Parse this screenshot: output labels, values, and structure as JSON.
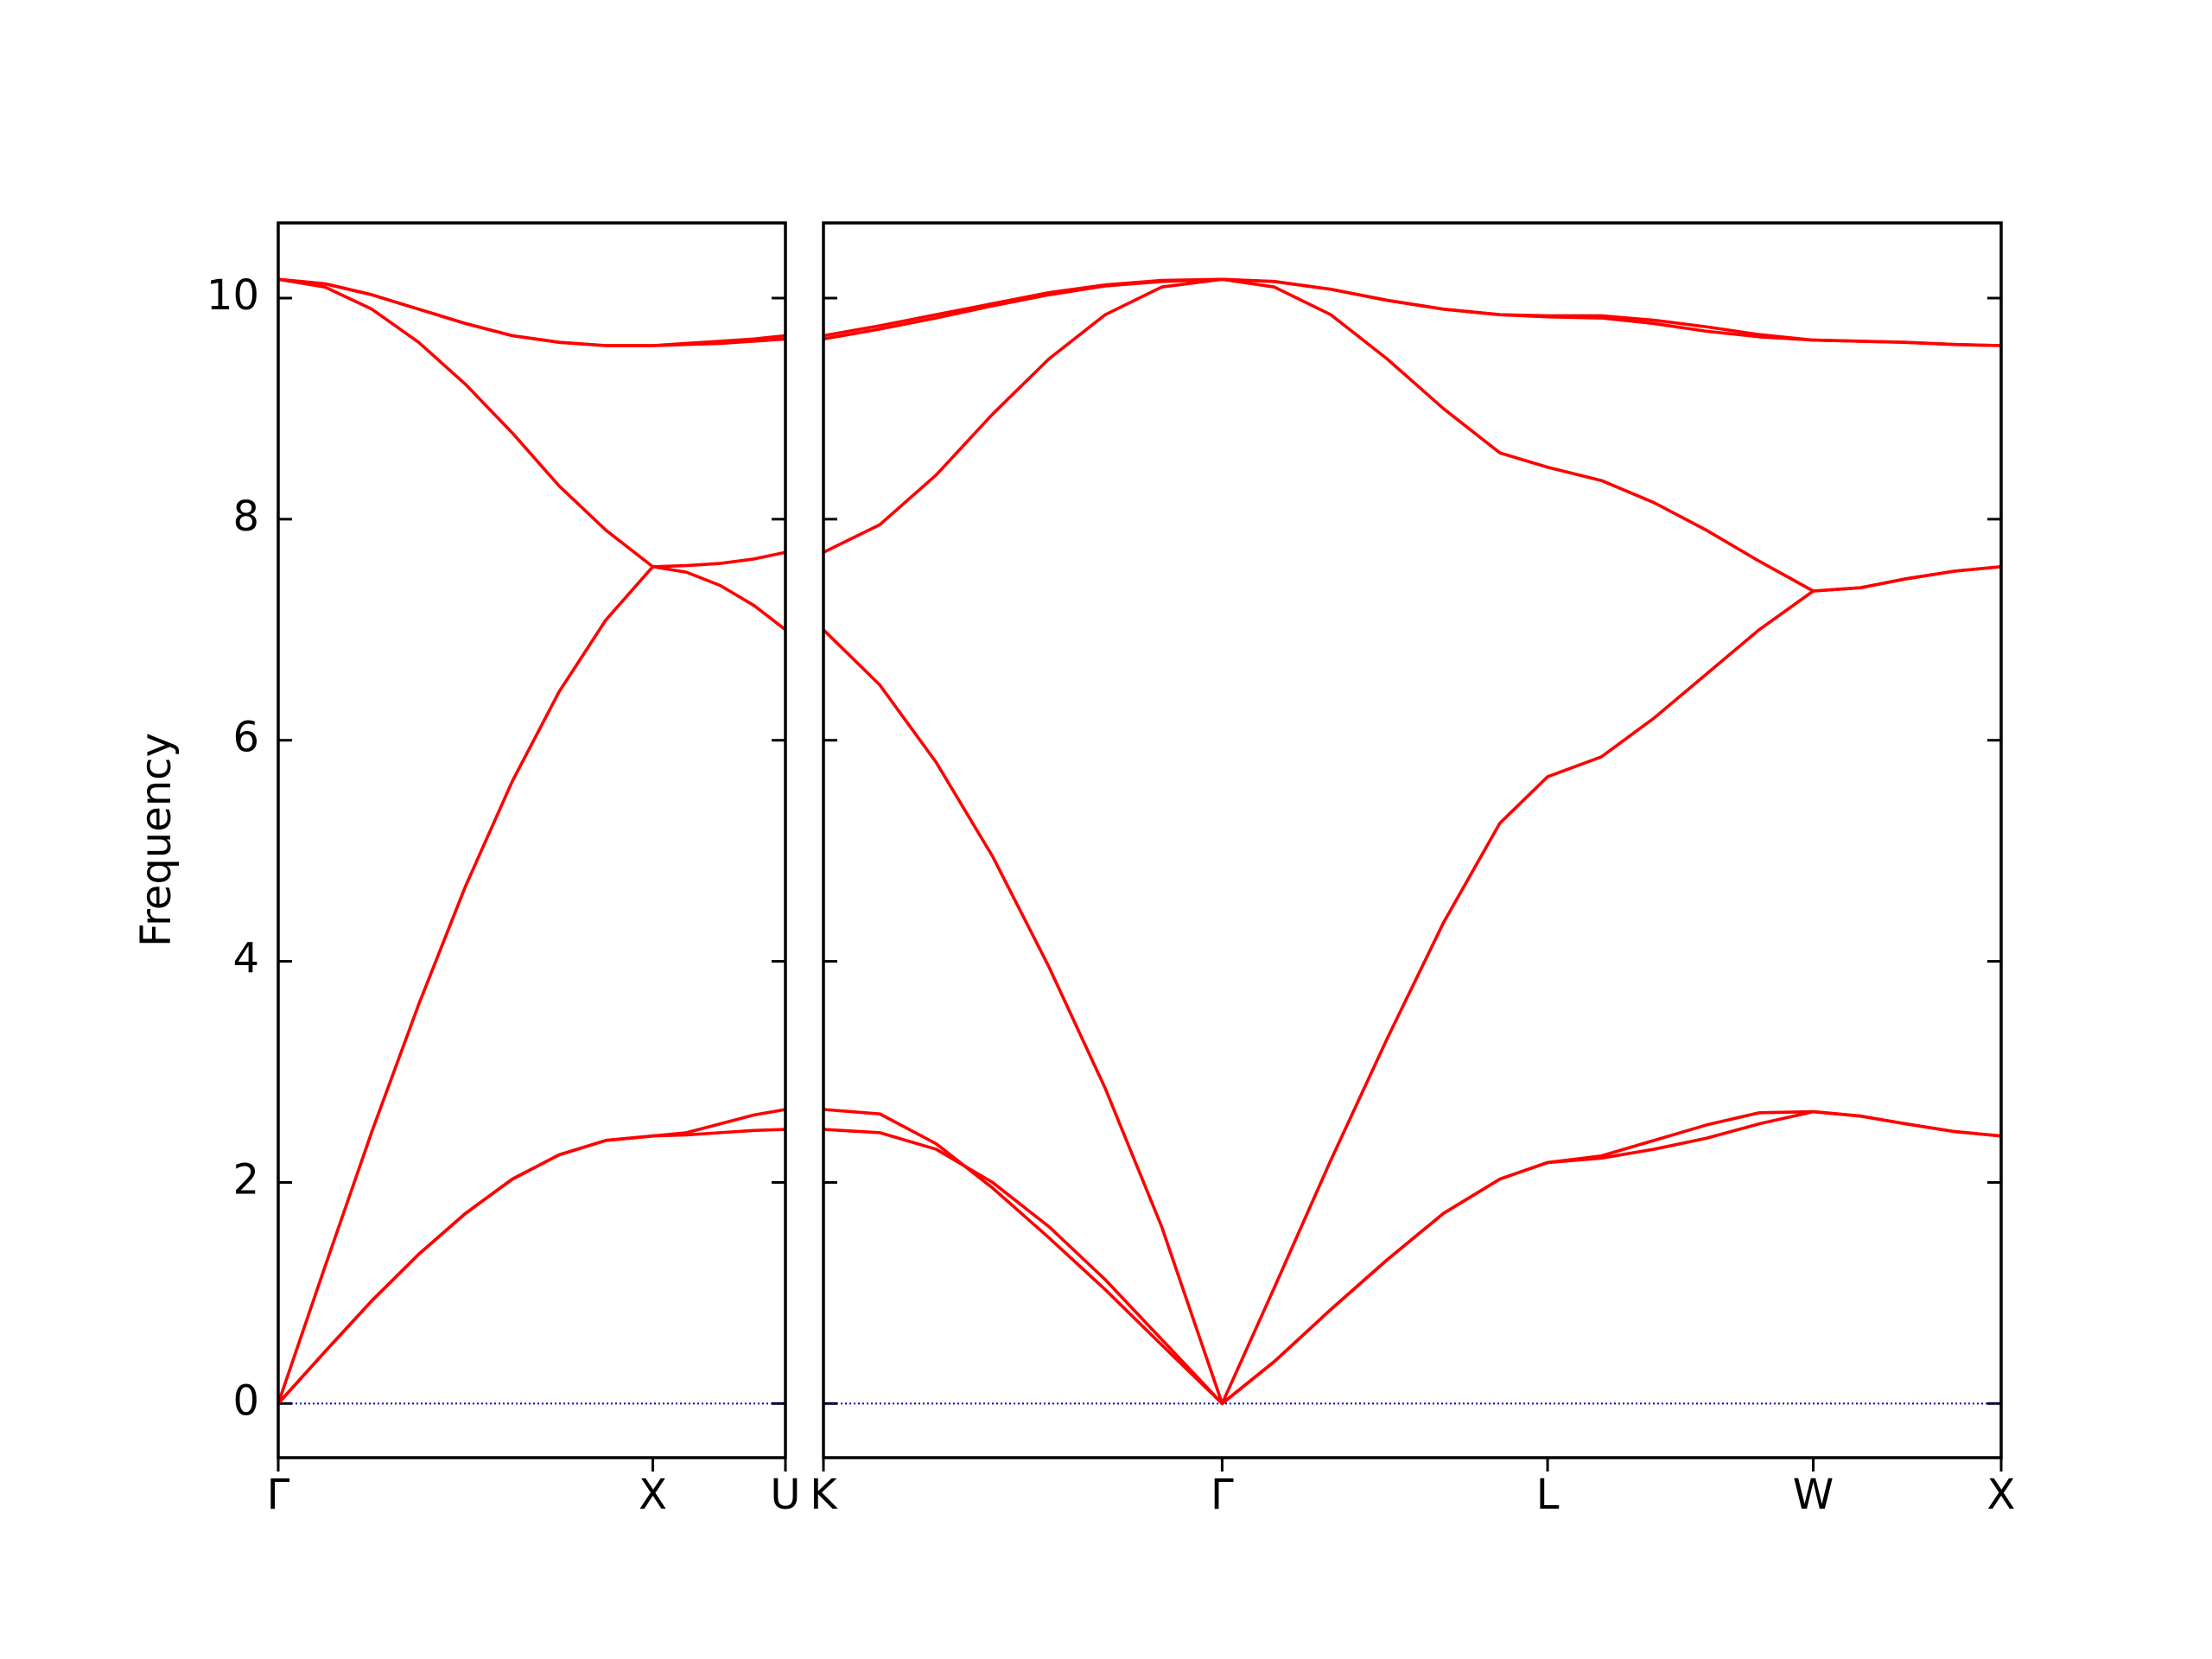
{
  "chart_data": [
    {
      "type": "line",
      "ylabel": "Frequency",
      "x": [
        0,
        0.125,
        0.25,
        0.375,
        0.5,
        0.625,
        0.75,
        0.875,
        1,
        1.09,
        1.18,
        1.27,
        1.354
      ],
      "xlim": [
        0,
        1.354
      ],
      "xticks": [
        {
          "value": 0,
          "label": "Γ"
        },
        {
          "value": 1,
          "label": "X"
        },
        {
          "value": 1.354,
          "label": "U"
        }
      ],
      "ylim": [
        -0.49,
        10.68
      ],
      "yticks": [
        0,
        2,
        4,
        6,
        8,
        10
      ],
      "zero_line_color": "#0000cc",
      "series": [
        {
          "color": "#ff0000",
          "values": [
            0,
            0.47,
            0.93,
            1.35,
            1.72,
            2.03,
            2.25,
            2.38,
            2.42,
            2.43,
            2.45,
            2.47,
            2.48
          ]
        },
        {
          "color": "#ff0000",
          "values": [
            0,
            0.47,
            0.93,
            1.35,
            1.72,
            2.03,
            2.25,
            2.38,
            2.42,
            2.45,
            2.53,
            2.61,
            2.66
          ]
        },
        {
          "color": "#ff0000",
          "values": [
            0,
            1.24,
            2.46,
            3.61,
            4.68,
            5.63,
            6.44,
            7.09,
            7.57,
            7.52,
            7.4,
            7.22,
            7.0
          ]
        },
        {
          "color": "#ff0000",
          "values": [
            10.17,
            10.1,
            9.9,
            9.6,
            9.22,
            8.78,
            8.3,
            7.9,
            7.57,
            7.58,
            7.6,
            7.64,
            7.7
          ]
        },
        {
          "color": "#ff0000",
          "values": [
            10.17,
            10.13,
            10.03,
            9.9,
            9.77,
            9.66,
            9.6,
            9.57,
            9.57,
            9.58,
            9.59,
            9.61,
            9.63
          ]
        },
        {
          "color": "#ff0000",
          "values": [
            10.17,
            10.13,
            10.03,
            9.9,
            9.77,
            9.66,
            9.6,
            9.57,
            9.57,
            9.59,
            9.61,
            9.63,
            9.66
          ]
        }
      ]
    },
    {
      "type": "line",
      "x": [
        0,
        0.15,
        0.3,
        0.45,
        0.6,
        0.75,
        0.9,
        1.061,
        1.2,
        1.35,
        1.5,
        1.65,
        1.8,
        1.927,
        2.07,
        2.21,
        2.35,
        2.49,
        2.634,
        2.76,
        2.88,
        3.01,
        3.134
      ],
      "xlim": [
        0,
        3.134
      ],
      "xticks": [
        {
          "value": 0,
          "label": "K"
        },
        {
          "value": 1.061,
          "label": "Γ"
        },
        {
          "value": 1.927,
          "label": "L"
        },
        {
          "value": 2.634,
          "label": "W"
        },
        {
          "value": 3.134,
          "label": "X"
        }
      ],
      "ylim": [
        -0.49,
        10.68
      ],
      "zero_line_color": "#0000cc",
      "series": [
        {
          "color": "#ff0000",
          "values": [
            2.48,
            2.45,
            2.3,
            2.0,
            1.6,
            1.12,
            0.58,
            0,
            0.38,
            0.85,
            1.3,
            1.72,
            2.03,
            2.18,
            2.22,
            2.3,
            2.4,
            2.53,
            2.64,
            2.6,
            2.53,
            2.46,
            2.42
          ]
        },
        {
          "color": "#ff0000",
          "values": [
            2.66,
            2.62,
            2.35,
            1.95,
            1.5,
            1.03,
            0.53,
            0,
            0.38,
            0.85,
            1.3,
            1.72,
            2.03,
            2.18,
            2.24,
            2.38,
            2.52,
            2.63,
            2.64,
            2.6,
            2.53,
            2.46,
            2.42
          ]
        },
        {
          "color": "#ff0000",
          "values": [
            7.0,
            6.5,
            5.8,
            4.95,
            3.95,
            2.85,
            1.6,
            0,
            1.05,
            2.2,
            3.3,
            4.35,
            5.25,
            5.67,
            5.85,
            6.2,
            6.6,
            7.0,
            7.35,
            7.38,
            7.46,
            7.53,
            7.57
          ]
        },
        {
          "color": "#ff0000",
          "values": [
            7.7,
            7.95,
            8.4,
            8.95,
            9.45,
            9.85,
            10.1,
            10.17,
            10.1,
            9.85,
            9.45,
            9.0,
            8.6,
            8.47,
            8.35,
            8.15,
            7.9,
            7.62,
            7.35,
            7.38,
            7.46,
            7.53,
            7.57
          ]
        },
        {
          "color": "#ff0000",
          "values": [
            9.63,
            9.72,
            9.82,
            9.93,
            10.03,
            10.11,
            10.15,
            10.17,
            10.15,
            10.08,
            9.98,
            9.9,
            9.85,
            9.83,
            9.82,
            9.77,
            9.7,
            9.65,
            9.62,
            9.61,
            9.6,
            9.58,
            9.57
          ]
        },
        {
          "color": "#ff0000",
          "values": [
            9.66,
            9.75,
            9.85,
            9.95,
            10.05,
            10.12,
            10.16,
            10.17,
            10.15,
            10.08,
            9.98,
            9.9,
            9.85,
            9.84,
            9.84,
            9.8,
            9.74,
            9.67,
            9.62,
            9.61,
            9.6,
            9.58,
            9.57
          ]
        }
      ]
    }
  ]
}
